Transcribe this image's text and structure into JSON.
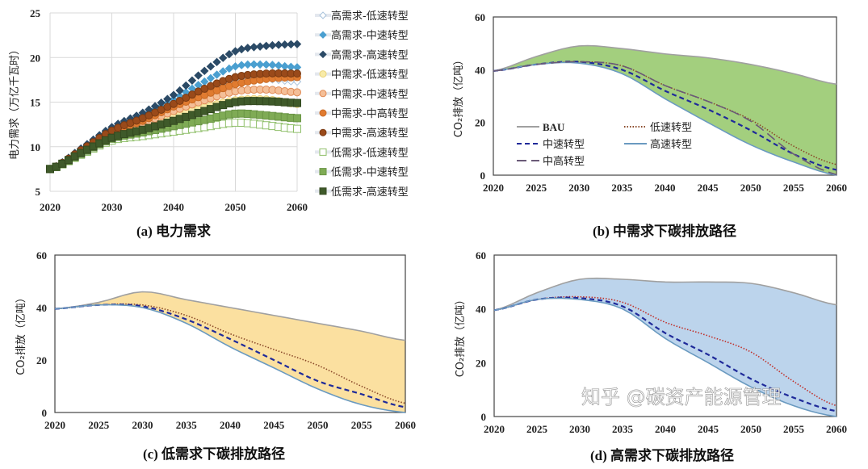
{
  "watermark": "知乎 @碳资产能源管理",
  "chart_data": [
    {
      "type": "scatter",
      "panel_title": "(a) 电力需求",
      "ylabel": "电力需求（万亿千瓦时）",
      "xlim": [
        2020,
        2060
      ],
      "ylim": [
        5,
        25
      ],
      "xticks": [
        2020,
        2030,
        2040,
        2050,
        2060
      ],
      "yticks": [
        5,
        10,
        15,
        20,
        25
      ],
      "grid": true,
      "legend": "right",
      "x": [
        2020,
        2025,
        2030,
        2035,
        2040,
        2045,
        2050,
        2055,
        2060
      ],
      "series": [
        {
          "name": "高需求-低速转型",
          "marker": "diamond",
          "color": "#ffffff",
          "stroke": "#a9c3dc",
          "values": [
            7.5,
            9.6,
            11.7,
            13.0,
            14.7,
            16.2,
            17.6,
            17.6,
            17.3
          ]
        },
        {
          "name": "高需求-中速转型",
          "marker": "diamond",
          "color": "#4a9fd0",
          "stroke": "#4a9fd0",
          "values": [
            7.5,
            9.7,
            12.0,
            13.5,
            15.3,
            17.3,
            19.0,
            19.2,
            18.9
          ]
        },
        {
          "name": "高需求-高速转型",
          "marker": "diamond",
          "color": "#2b4a66",
          "stroke": "#2b4a66",
          "values": [
            7.5,
            9.8,
            12.2,
            13.8,
            15.8,
            18.5,
            20.7,
            21.3,
            21.5
          ]
        },
        {
          "name": "中需求-低速转型",
          "marker": "circle",
          "color": "#f8eba8",
          "stroke": "#e8d27a",
          "values": [
            7.5,
            9.3,
            11.2,
            12.3,
            13.4,
            14.4,
            15.2,
            15.3,
            14.8
          ]
        },
        {
          "name": "中需求-中速转型",
          "marker": "circle",
          "color": "#f4bf98",
          "stroke": "#e08a55",
          "values": [
            7.5,
            9.4,
            11.4,
            12.6,
            14.0,
            15.2,
            16.2,
            16.4,
            16.1
          ]
        },
        {
          "name": "中需求-中高转型",
          "marker": "circle",
          "color": "#e07b30",
          "stroke": "#c86a25",
          "values": [
            7.5,
            9.5,
            11.6,
            12.9,
            14.5,
            15.8,
            17.0,
            17.6,
            17.8
          ]
        },
        {
          "name": "中需求-高速转型",
          "marker": "circle",
          "color": "#9a4a1a",
          "stroke": "#7a3a12",
          "values": [
            7.5,
            9.6,
            11.8,
            13.2,
            14.8,
            16.5,
            17.8,
            18.2,
            18.2
          ]
        },
        {
          "name": "低需求-低速转型",
          "marker": "square",
          "color": "#ffffff",
          "stroke": "#8fbf6a",
          "values": [
            7.5,
            9.1,
            10.7,
            11.2,
            11.7,
            12.2,
            12.7,
            12.4,
            12.0
          ]
        },
        {
          "name": "低需求-中速转型",
          "marker": "square",
          "color": "#7fab55",
          "stroke": "#6a9545",
          "values": [
            7.5,
            9.2,
            10.9,
            11.6,
            12.3,
            13.0,
            13.7,
            13.5,
            13.2
          ]
        },
        {
          "name": "低需求-高速转型",
          "marker": "square",
          "color": "#3f5a2a",
          "stroke": "#33491f",
          "values": [
            7.5,
            9.3,
            11.0,
            11.9,
            12.9,
            14.0,
            15.0,
            15.1,
            14.9
          ]
        }
      ]
    },
    {
      "type": "area",
      "panel_title": "(b) 中需求下碳排放路径",
      "ylabel": "CO₂排放（亿吨）",
      "xlim": [
        2020,
        2060
      ],
      "ylim": [
        0,
        60
      ],
      "xticks": [
        2020,
        2025,
        2030,
        2035,
        2040,
        2045,
        2050,
        2055,
        2060
      ],
      "yticks": [
        0,
        20,
        40,
        60
      ],
      "fill_color": "#a3cf7e",
      "legend": "inside-bottom-left",
      "x": [
        2020,
        2025,
        2030,
        2035,
        2040,
        2045,
        2050,
        2055,
        2060
      ],
      "series": [
        {
          "name": "BAU",
          "style": "solid",
          "color": "#a0a0a0",
          "values": [
            39.5,
            45,
            49,
            48,
            46,
            44.5,
            42,
            38.5,
            34.5
          ]
        },
        {
          "name": "低速转型",
          "style": "dotted",
          "color": "#8b4a2a",
          "values": [
            39.5,
            42,
            43,
            41.5,
            34,
            28,
            21,
            11,
            4
          ]
        },
        {
          "name": "中速转型",
          "style": "dashed",
          "color": "#1f2a9a",
          "values": [
            39.5,
            42,
            43,
            40,
            32,
            25,
            17,
            8,
            2
          ]
        },
        {
          "name": "高速转型",
          "style": "solid",
          "color": "#6a9ac0",
          "values": [
            39.5,
            42,
            42.5,
            38.5,
            29,
            20,
            11.5,
            5,
            0
          ]
        },
        {
          "name": "中高转型",
          "style": "longdash",
          "color": "#6a5a78",
          "values": [
            39.5,
            42,
            43,
            41.5,
            34,
            28,
            20.5,
            8,
            0.2
          ]
        }
      ]
    },
    {
      "type": "area",
      "panel_title": "(c) 低需求下碳排放路径",
      "ylabel": "CO₂排放（亿吨）",
      "xlim": [
        2020,
        2060
      ],
      "ylim": [
        0,
        60
      ],
      "xticks": [
        2020,
        2025,
        2030,
        2035,
        2040,
        2045,
        2050,
        2055,
        2060
      ],
      "yticks": [
        0,
        20,
        40,
        60
      ],
      "fill_color": "#fbe0a0",
      "x": [
        2020,
        2025,
        2030,
        2035,
        2040,
        2045,
        2050,
        2055,
        2060
      ],
      "series": [
        {
          "style": "solid",
          "color": "#a0a0a0",
          "values": [
            39.5,
            42,
            46,
            43,
            40,
            37,
            34,
            31,
            27.5
          ]
        },
        {
          "style": "dotted",
          "color": "#8b4a2a",
          "values": [
            39.5,
            41,
            41,
            37,
            30,
            24,
            18,
            10,
            3.5
          ]
        },
        {
          "style": "dashed",
          "color": "#1f2a9a",
          "values": [
            39.5,
            41,
            40.5,
            35.5,
            28,
            20,
            12,
            7,
            2
          ]
        },
        {
          "style": "solid",
          "color": "#6a9ac0",
          "values": [
            39.5,
            41,
            40,
            34,
            25,
            17,
            9,
            3,
            0
          ]
        }
      ]
    },
    {
      "type": "area",
      "panel_title": "(d) 高需求下碳排放路径",
      "ylabel": "CO₂排放（亿吨）",
      "xlim": [
        2020,
        2060
      ],
      "ylim": [
        0,
        60
      ],
      "xticks": [
        2020,
        2025,
        2030,
        2035,
        2040,
        2045,
        2050,
        2055,
        2060
      ],
      "yticks": [
        0,
        20,
        40,
        60
      ],
      "fill_color": "#bcd4ec",
      "x": [
        2020,
        2025,
        2030,
        2035,
        2040,
        2045,
        2050,
        2055,
        2060
      ],
      "series": [
        {
          "style": "solid",
          "color": "#a0a0a0",
          "values": [
            39.5,
            46,
            51,
            51,
            50,
            50,
            49.5,
            46,
            41.5
          ]
        },
        {
          "style": "dotted",
          "color": "#c0302a",
          "values": [
            39.5,
            43.5,
            44.5,
            42.5,
            35,
            30,
            24,
            13,
            4
          ]
        },
        {
          "style": "dashed",
          "color": "#1f2a9a",
          "values": [
            39.5,
            43.5,
            44,
            41,
            31,
            23,
            14,
            7,
            2
          ]
        },
        {
          "style": "solid",
          "color": "#6a9ac0",
          "values": [
            39.5,
            43.5,
            43.5,
            40,
            29,
            20,
            11,
            4,
            0
          ]
        }
      ]
    }
  ]
}
